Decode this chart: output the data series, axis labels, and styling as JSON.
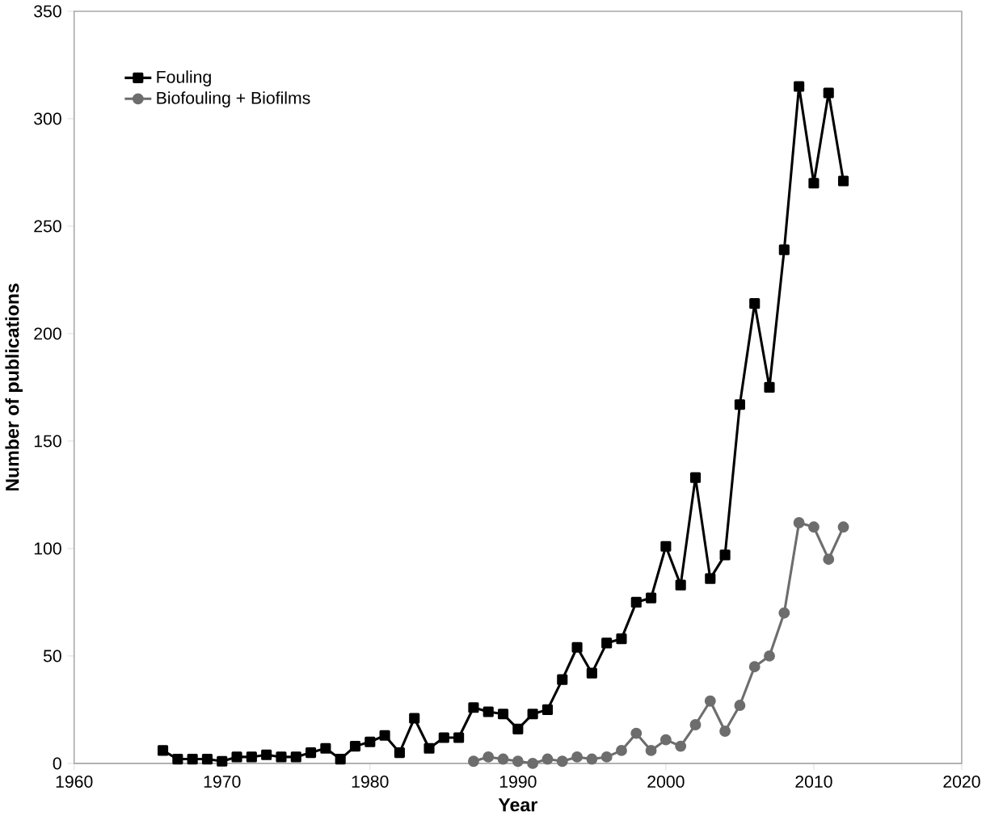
{
  "chart_data": {
    "type": "line",
    "xlabel": "Year",
    "ylabel": "Number of publications",
    "xlim": [
      1960,
      2020
    ],
    "xticks": [
      1960,
      1970,
      1980,
      1990,
      2000,
      2010,
      2020
    ],
    "ylim": [
      0,
      350
    ],
    "yticks": [
      0,
      50,
      100,
      150,
      200,
      250,
      300,
      350
    ],
    "grid": false,
    "legend": "top left",
    "series": [
      {
        "name": "Fouling",
        "color": "#000000",
        "marker": "square",
        "x": [
          1966,
          1967,
          1968,
          1969,
          1970,
          1971,
          1972,
          1973,
          1974,
          1975,
          1976,
          1977,
          1978,
          1979,
          1980,
          1981,
          1982,
          1983,
          1984,
          1985,
          1986,
          1987,
          1988,
          1989,
          1990,
          1991,
          1992,
          1993,
          1994,
          1995,
          1996,
          1997,
          1998,
          1999,
          2000,
          2001,
          2002,
          2003,
          2004,
          2005,
          2006,
          2007,
          2008,
          2009,
          2010,
          2011,
          2012
        ],
        "values": [
          6,
          2,
          2,
          2,
          1,
          3,
          3,
          4,
          3,
          3,
          5,
          7,
          2,
          8,
          10,
          13,
          5,
          21,
          7,
          12,
          12,
          26,
          24,
          23,
          16,
          23,
          25,
          39,
          54,
          42,
          56,
          58,
          75,
          77,
          101,
          83,
          133,
          86,
          97,
          167,
          214,
          175,
          239,
          315,
          270,
          312,
          271
        ]
      },
      {
        "name": "Biofouling + Biofilms",
        "color": "#6d6d6d",
        "marker": "circle",
        "x": [
          1987,
          1988,
          1989,
          1990,
          1991,
          1992,
          1993,
          1994,
          1995,
          1996,
          1997,
          1998,
          1999,
          2000,
          2001,
          2002,
          2003,
          2004,
          2005,
          2006,
          2007,
          2008,
          2009,
          2010,
          2011,
          2012
        ],
        "values": [
          1,
          3,
          2,
          1,
          0,
          2,
          1,
          3,
          2,
          3,
          6,
          14,
          6,
          11,
          8,
          18,
          29,
          15,
          27,
          45,
          50,
          70,
          112,
          110,
          95,
          110
        ]
      }
    ]
  }
}
